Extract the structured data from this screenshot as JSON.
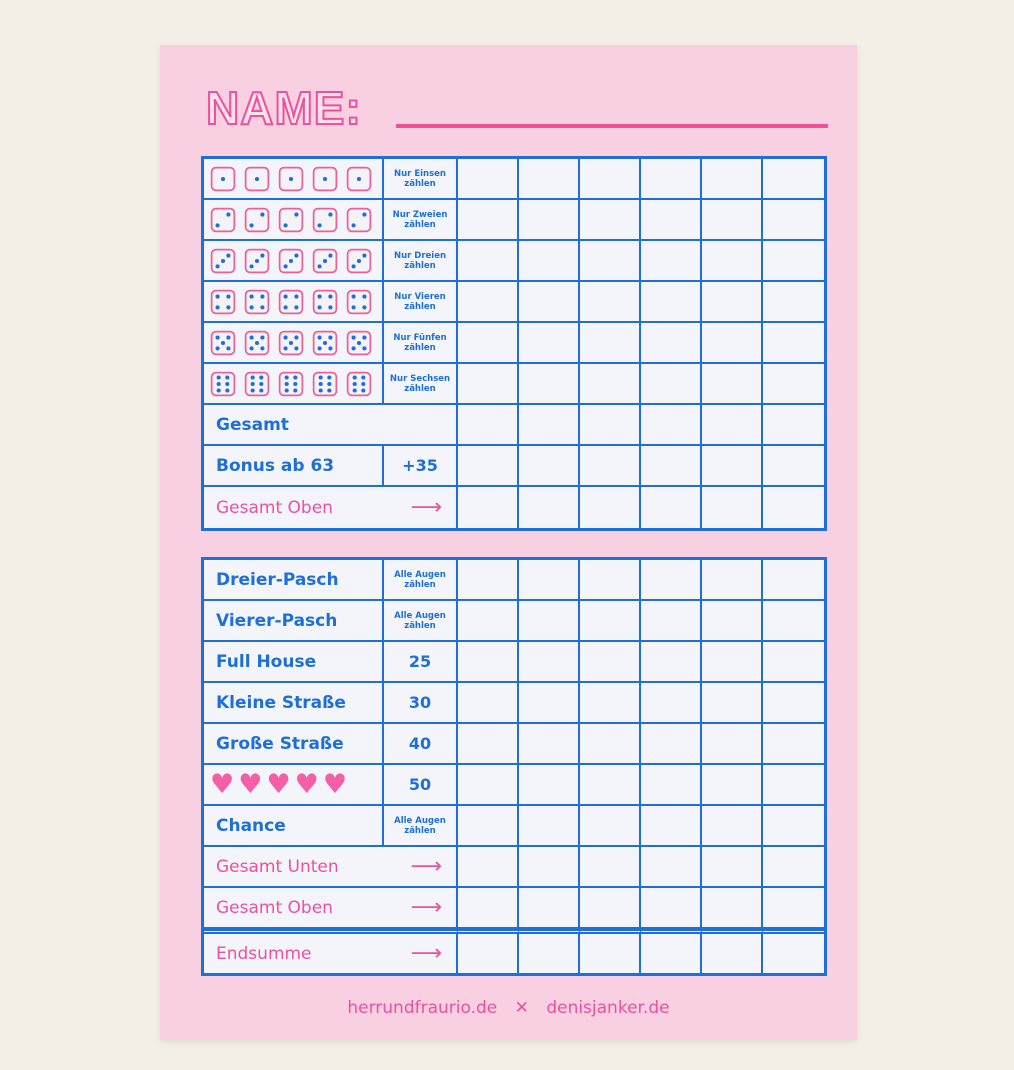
{
  "header": {
    "title": "NAME:"
  },
  "colors": {
    "blue": "#1e6fd9",
    "pink": "#f0509a",
    "paper": "#f8d0e1",
    "background": "#f3efe6"
  },
  "player_columns": 6,
  "upper": {
    "dice_rows": [
      {
        "face": 1,
        "desc_line1": "Nur Einsen",
        "desc_line2": "zählen"
      },
      {
        "face": 2,
        "desc_line1": "Nur Zweien",
        "desc_line2": "zählen"
      },
      {
        "face": 3,
        "desc_line1": "Nur Dreien",
        "desc_line2": "zählen"
      },
      {
        "face": 4,
        "desc_line1": "Nur Vieren",
        "desc_line2": "zählen"
      },
      {
        "face": 5,
        "desc_line1": "Nur Fünfen",
        "desc_line2": "zählen"
      },
      {
        "face": 6,
        "desc_line1": "Nur Sechsen",
        "desc_line2": "zählen"
      }
    ],
    "total": "Gesamt",
    "bonus": {
      "label": "Bonus ab 63",
      "value": "+35"
    },
    "upper_total": {
      "label": "Gesamt Oben",
      "arrow": "⟶"
    }
  },
  "lower": {
    "rows": [
      {
        "label": "Dreier-Pasch",
        "desc_line1": "Alle Augen",
        "desc_line2": "zählen"
      },
      {
        "label": "Vierer-Pasch",
        "desc_line1": "Alle Augen",
        "desc_line2": "zählen"
      },
      {
        "label": "Full House",
        "value": "25"
      },
      {
        "label": "Kleine Straße",
        "value": "30"
      },
      {
        "label": "Große Straße",
        "value": "40"
      },
      {
        "icon": "heart-icon",
        "value": "50"
      },
      {
        "label": "Chance",
        "desc_line1": "Alle Augen",
        "desc_line2": "zählen"
      }
    ],
    "totals": [
      {
        "label": "Gesamt Unten",
        "arrow": "⟶"
      },
      {
        "label": "Gesamt Oben",
        "arrow": "⟶"
      },
      {
        "label": "Endsumme",
        "arrow": "⟶"
      }
    ]
  },
  "footer": {
    "left": "herrundfraurio.de",
    "separator": "✕",
    "right": "denisjanker.de"
  }
}
